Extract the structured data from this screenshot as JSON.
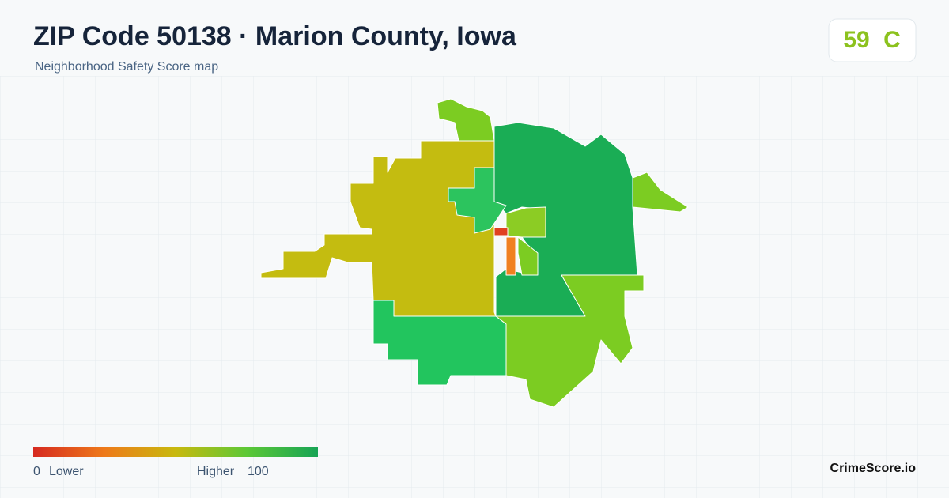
{
  "header": {
    "title": "ZIP Code 50138 · Marion County, Iowa",
    "subtitle": "Neighborhood Safety Score map"
  },
  "score": {
    "value": 59,
    "grade": "C"
  },
  "legend": {
    "min": 0,
    "min_label": "Lower",
    "max_label": "Higher",
    "max": 100
  },
  "brand": "CrimeScore.io"
}
